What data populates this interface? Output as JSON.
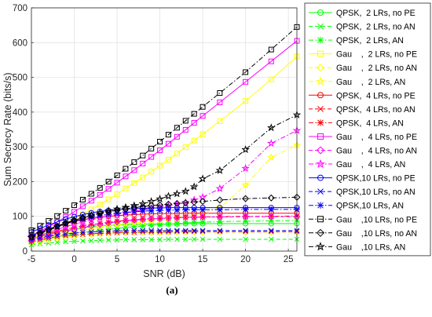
{
  "chart_data": {
    "type": "line",
    "title": "",
    "xlabel": "SNR (dB)",
    "ylabel": "Sum Secrecy Rate (bits/s)",
    "caption": "(a)",
    "xlim": [
      -5,
      26
    ],
    "ylim": [
      0,
      700
    ],
    "xticks": [
      -5,
      0,
      5,
      10,
      15,
      20,
      25
    ],
    "yticks": [
      0,
      100,
      200,
      300,
      400,
      500,
      600,
      700
    ],
    "grid": true,
    "legend_position": "right-outside",
    "x": [
      -5,
      -4,
      -3,
      -2,
      -1,
      0,
      1,
      2,
      3,
      4,
      5,
      6,
      7,
      8,
      9,
      10,
      11,
      12,
      13,
      14,
      15,
      17,
      20,
      23,
      26
    ],
    "series": [
      {
        "name": "QPSK,  2 LRs, no PE",
        "color": "#00ff00",
        "dash": "solid",
        "marker": "circle",
        "values": [
          35,
          42,
          48,
          54,
          59,
          63,
          67,
          70,
          72,
          74,
          75,
          76,
          77,
          77,
          78,
          78,
          78,
          78,
          79,
          79,
          79,
          79,
          79,
          79,
          79
        ]
      },
      {
        "name": "QPSK,  2 LRs, no AN",
        "color": "#00ff00",
        "dash": "dashed",
        "marker": "x",
        "values": [
          18,
          21,
          23,
          25,
          27,
          28,
          29,
          30,
          31,
          32,
          32,
          33,
          33,
          33,
          33,
          33,
          34,
          34,
          34,
          34,
          34,
          34,
          34,
          34,
          34
        ]
      },
      {
        "name": "QPSK,  2 LRs, AN",
        "color": "#00ff00",
        "dash": "dashdot",
        "marker": "asterisk",
        "values": [
          25,
          31,
          36,
          41,
          46,
          50,
          54,
          57,
          60,
          63,
          65,
          68,
          70,
          72,
          74,
          76,
          78,
          79,
          81,
          82,
          83,
          85,
          86,
          87,
          88
        ]
      },
      {
        "name": "Gau    ,  2 LRs, no PE",
        "color": "#ffff00",
        "dash": "solid",
        "marker": "square",
        "values": [
          35,
          45,
          56,
          68,
          80,
          93,
          106,
          120,
          134,
          149,
          164,
          180,
          196,
          212,
          229,
          246,
          263,
          281,
          299,
          318,
          336,
          374,
          432,
          494,
          560
        ]
      },
      {
        "name": "Gau    ,  2 LRs, no AN",
        "color": "#ffff00",
        "dash": "dashed",
        "marker": "diamond",
        "values": [
          22,
          27,
          32,
          36,
          40,
          43,
          46,
          48,
          50,
          51,
          52,
          53,
          53,
          54,
          54,
          54,
          54,
          55,
          55,
          55,
          55,
          55,
          55,
          55,
          55
        ]
      },
      {
        "name": "Gau    ,  2 LRs, AN",
        "color": "#ffff00",
        "dash": "dashdot",
        "marker": "star",
        "values": [
          28,
          34,
          40,
          45,
          50,
          55,
          60,
          64,
          68,
          72,
          75,
          78,
          81,
          84,
          87,
          90,
          93,
          96,
          100,
          105,
          110,
          125,
          190,
          270,
          305
        ]
      },
      {
        "name": "QPSK,  4 LRs, no PE",
        "color": "#ff0000",
        "dash": "solid",
        "marker": "circle",
        "values": [
          45,
          55,
          64,
          72,
          79,
          85,
          90,
          94,
          97,
          100,
          102,
          104,
          105,
          106,
          107,
          108,
          108,
          108,
          109,
          109,
          109,
          109,
          109,
          109,
          109
        ]
      },
      {
        "name": "QPSK,  4 LRs, no AN",
        "color": "#ff0000",
        "dash": "dashed",
        "marker": "x",
        "values": [
          28,
          33,
          37,
          41,
          44,
          46,
          48,
          50,
          51,
          52,
          53,
          54,
          54,
          55,
          55,
          55,
          55,
          56,
          56,
          56,
          56,
          56,
          56,
          56,
          56
        ]
      },
      {
        "name": "QPSK,  4 LRs, AN",
        "color": "#ff0000",
        "dash": "dashdot",
        "marker": "asterisk",
        "values": [
          35,
          43,
          50,
          57,
          63,
          68,
          73,
          77,
          80,
          83,
          86,
          88,
          90,
          92,
          93,
          94,
          95,
          96,
          97,
          97,
          98,
          99,
          100,
          100,
          101
        ]
      },
      {
        "name": "Gau    ,  4 LRs, no PE",
        "color": "#ff00ff",
        "dash": "solid",
        "marker": "square",
        "values": [
          45,
          57,
          70,
          84,
          98,
          113,
          129,
          145,
          162,
          179,
          197,
          215,
          233,
          252,
          271,
          290,
          309,
          329,
          349,
          369,
          389,
          428,
          487,
          546,
          605
        ]
      },
      {
        "name": "Gau    ,  4 LRs, no AN",
        "color": "#ff00ff",
        "dash": "dashed",
        "marker": "diamond",
        "values": [
          30,
          37,
          44,
          51,
          57,
          63,
          68,
          73,
          77,
          81,
          84,
          87,
          89,
          91,
          93,
          94,
          95,
          96,
          97,
          97,
          98,
          98,
          99,
          99,
          99
        ]
      },
      {
        "name": "Gau    ,  4 LRs, AN",
        "color": "#ff00ff",
        "dash": "dashdot",
        "marker": "star",
        "values": [
          38,
          46,
          54,
          62,
          70,
          77,
          84,
          90,
          96,
          101,
          106,
          110,
          114,
          118,
          122,
          126,
          130,
          135,
          140,
          147,
          155,
          180,
          238,
          310,
          347
        ]
      },
      {
        "name": "QPSK,10 LRs, no PE",
        "color": "#0000ff",
        "dash": "solid",
        "marker": "circle",
        "values": [
          55,
          65,
          75,
          84,
          92,
          99,
          105,
          110,
          114,
          117,
          119,
          121,
          122,
          123,
          124,
          124,
          125,
          125,
          125,
          125,
          125,
          125,
          125,
          125,
          125
        ]
      },
      {
        "name": "QPSK,10 LRs, no AN",
        "color": "#0000ff",
        "dash": "dashed",
        "marker": "x",
        "values": [
          33,
          38,
          42,
          46,
          49,
          52,
          54,
          55,
          56,
          57,
          58,
          58,
          59,
          59,
          59,
          59,
          59,
          59,
          59,
          59,
          59,
          59,
          59,
          59,
          59
        ]
      },
      {
        "name": "QPSK,10 LRs, AN",
        "color": "#0000ff",
        "dash": "dashdot",
        "marker": "asterisk",
        "values": [
          45,
          54,
          63,
          71,
          79,
          86,
          92,
          97,
          102,
          106,
          109,
          111,
          113,
          115,
          116,
          117,
          118,
          118,
          119,
          119,
          119,
          119,
          120,
          120,
          120
        ]
      },
      {
        "name": "Gau    ,10 LRs, no PE",
        "color": "#000000",
        "dash": "dashdot",
        "marker": "square",
        "values": [
          60,
          73,
          87,
          101,
          116,
          132,
          148,
          165,
          182,
          200,
          218,
          237,
          256,
          275,
          295,
          315,
          335,
          355,
          375,
          395,
          415,
          455,
          515,
          580,
          645
        ]
      },
      {
        "name": "Gau    ,10 LRs, no AN",
        "color": "#000000",
        "dash": "dashdot",
        "marker": "diamond",
        "values": [
          42,
          52,
          62,
          72,
          81,
          89,
          96,
          102,
          108,
          113,
          117,
          121,
          125,
          128,
          131,
          133,
          135,
          137,
          139,
          141,
          143,
          147,
          151,
          153,
          155
        ]
      },
      {
        "name": "Gau    ,10 LRs, AN",
        "color": "#000000",
        "dash": "dashdot",
        "marker": "star",
        "values": [
          40,
          50,
          60,
          70,
          79,
          88,
          96,
          103,
          110,
          116,
          121,
          126,
          131,
          136,
          143,
          150,
          158,
          165,
          172,
          185,
          208,
          232,
          292,
          355,
          392
        ]
      }
    ]
  }
}
